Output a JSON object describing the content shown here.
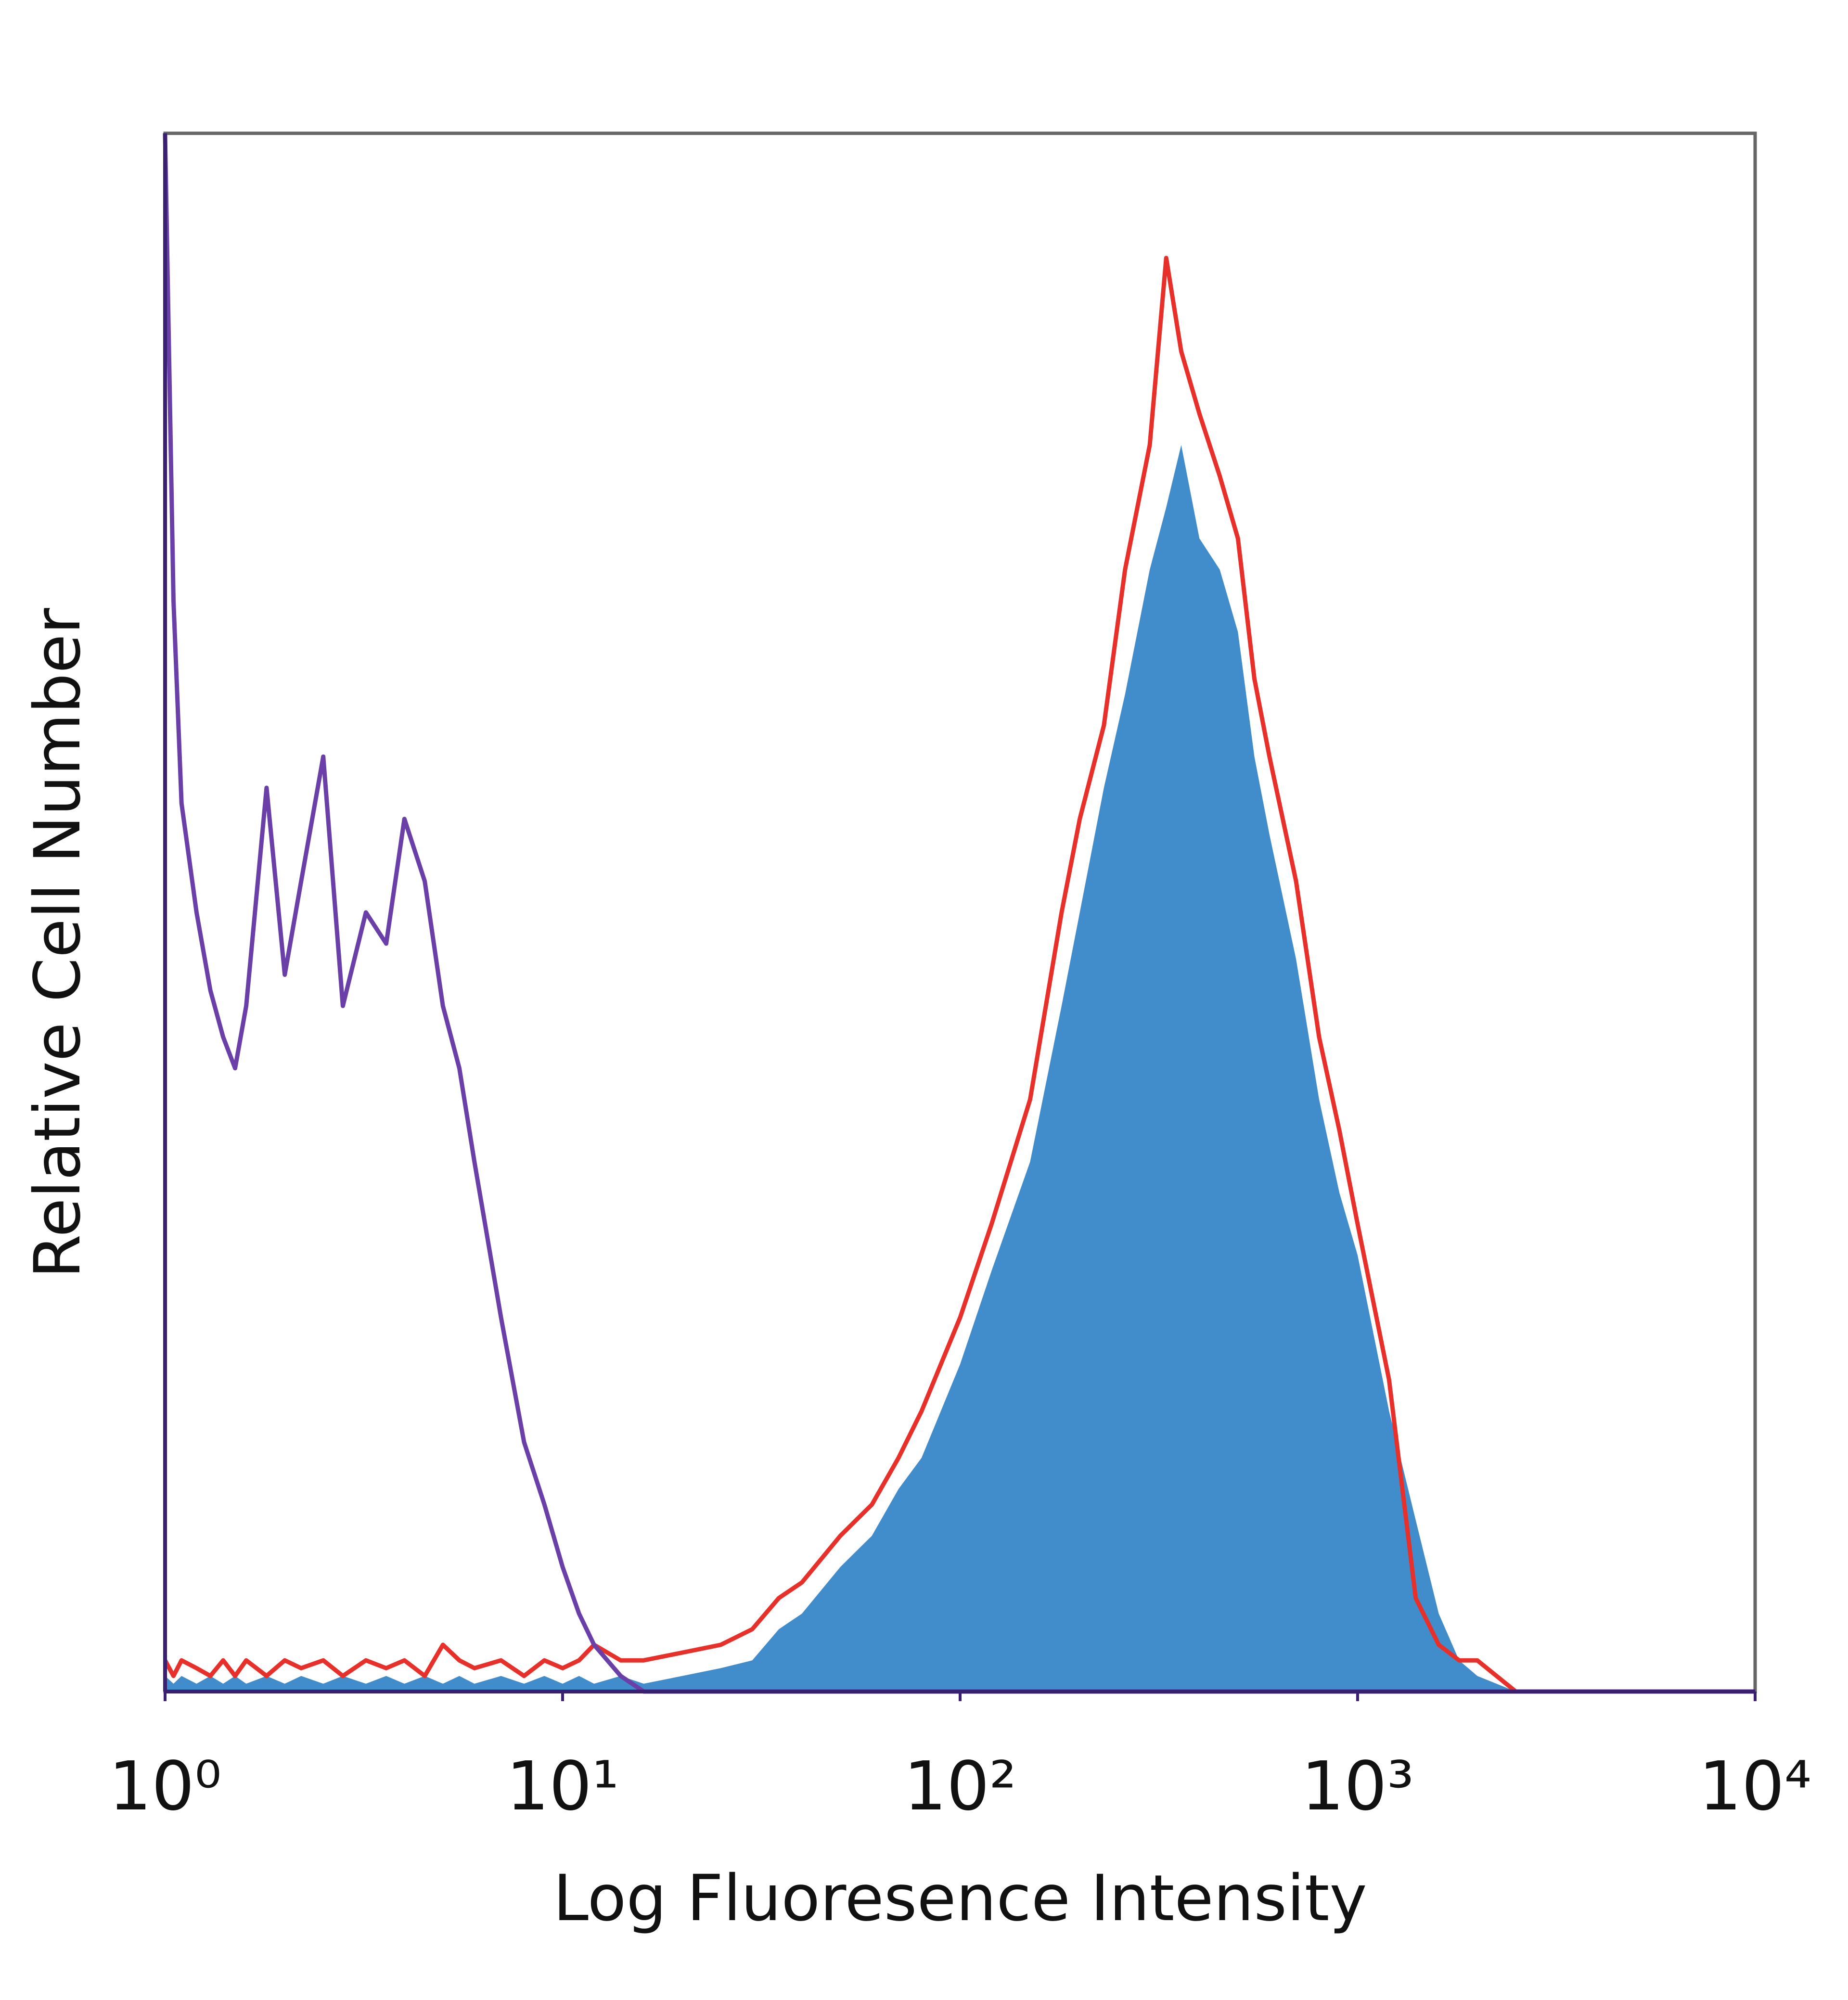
{
  "chart_data": {
    "type": "histogram-overlay",
    "x_label": "Log Fluoresence Intensity",
    "y_label": "Relative Cell Number",
    "x_scale": "log",
    "xlim": [
      1,
      10000
    ],
    "ylim": [
      0,
      100
    ],
    "xticks": [
      {
        "value": 1,
        "label": "10⁰"
      },
      {
        "value": 10,
        "label": "10¹"
      },
      {
        "value": 100,
        "label": "10²"
      },
      {
        "value": 1000,
        "label": "10³"
      },
      {
        "value": 10000,
        "label": "10⁴"
      }
    ],
    "x": [
      1,
      1.05,
      1.1,
      1.2,
      1.3,
      1.4,
      1.5,
      1.6,
      1.8,
      2,
      2.2,
      2.5,
      2.8,
      3.2,
      3.6,
      4,
      4.5,
      5,
      5.5,
      6,
      7,
      8,
      9,
      10,
      11,
      12,
      14,
      16,
      20,
      25,
      30,
      35,
      40,
      50,
      60,
      70,
      80,
      100,
      120,
      150,
      180,
      200,
      230,
      260,
      300,
      330,
      360,
      400,
      450,
      500,
      550,
      600,
      700,
      800,
      900,
      1000,
      1200,
      1400,
      1600,
      1800,
      2000,
      2500,
      3000,
      5000,
      10000
    ],
    "series": [
      {
        "style": "area",
        "color": "#418ccb",
        "values": [
          1,
          0.5,
          1,
          0.5,
          1,
          0.5,
          1,
          0.5,
          1,
          0.5,
          1,
          0.5,
          1,
          0.5,
          1,
          0.5,
          1,
          0.5,
          1,
          0.5,
          1,
          0.5,
          1,
          0.5,
          1,
          0.5,
          1,
          0.5,
          1,
          1.5,
          2,
          4,
          5,
          8,
          10,
          13,
          15,
          21,
          27,
          34,
          44,
          50,
          58,
          64,
          72,
          76,
          80,
          74,
          72,
          68,
          60,
          55,
          47,
          38,
          32,
          28,
          18,
          11,
          5,
          2,
          1,
          0,
          0,
          0,
          0
        ]
      },
      {
        "style": "line",
        "color": "#e8302a",
        "values": [
          2,
          1,
          2,
          1.5,
          1,
          2,
          1,
          2,
          1,
          2,
          1.5,
          2,
          1,
          2,
          1.5,
          2,
          1,
          3,
          2,
          1.5,
          2,
          1,
          2,
          1.5,
          2,
          3,
          2,
          2,
          2.5,
          3,
          4,
          6,
          7,
          10,
          12,
          15,
          18,
          24,
          30,
          38,
          50,
          56,
          62,
          72,
          80,
          92,
          86,
          82,
          78,
          74,
          65,
          60,
          52,
          42,
          36,
          30,
          20,
          6,
          3,
          2,
          2,
          0,
          0,
          0,
          0
        ]
      },
      {
        "style": "line",
        "color": "#6a3fa8",
        "values": [
          100,
          70,
          57,
          50,
          45,
          42,
          40,
          44,
          58,
          46,
          52,
          60,
          44,
          50,
          48,
          56,
          52,
          44,
          40,
          34,
          24,
          16,
          12,
          8,
          5,
          3,
          1,
          0,
          0,
          0,
          0,
          0,
          0,
          0,
          0,
          0,
          0,
          0,
          0,
          0,
          0,
          0,
          0,
          0,
          0,
          0,
          0,
          0,
          0,
          0,
          0,
          0,
          0,
          0,
          0,
          0,
          0,
          0,
          0,
          0,
          0,
          0,
          0,
          0,
          0
        ]
      }
    ]
  }
}
